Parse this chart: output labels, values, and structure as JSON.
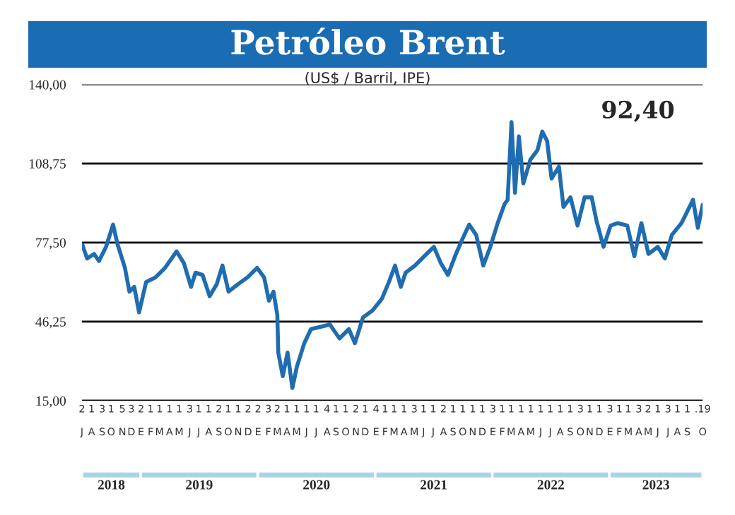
{
  "chart_data": {
    "type": "line",
    "title": "Petróleo Brent",
    "subtitle": "(US$ / Barril, IPE)",
    "annotations": [
      "92,40",
      "J",
      "A",
      "S",
      "O",
      "N",
      "D",
      "E",
      "F",
      "M",
      "A",
      "M",
      "J",
      "J",
      "A",
      "S",
      "O",
      "N",
      "D",
      "E",
      "F",
      "M",
      "A",
      "M",
      "J",
      "J",
      "A",
      "S",
      "O",
      "N",
      "D",
      "E",
      "F",
      "M",
      "A",
      "M",
      "J",
      "J",
      "A",
      "S",
      "O",
      "N",
      "D",
      "E",
      "F",
      "M",
      "A",
      "M",
      "J",
      "J",
      "A",
      "S",
      "O",
      "N",
      "D",
      "E",
      "F",
      "M",
      "A",
      "M",
      "J",
      "J",
      "A",
      "S",
      "O",
      "2018",
      "2019",
      "2020",
      "2021",
      "2022",
      "2023"
    ],
    "x": [
      "2018-07-03",
      "2018-07-18",
      "2018-08-09",
      "2018-08-24",
      "2018-09-15",
      "2018-10-07",
      "2018-10-21",
      "2018-11-13",
      "2018-11-27",
      "2018-12-12",
      "2018-12-27",
      "2019-01-18",
      "2019-02-16",
      "2019-03-18",
      "2019-04-23",
      "2019-05-16",
      "2019-06-07",
      "2019-06-21",
      "2019-07-13",
      "2019-08-04",
      "2019-08-26",
      "2019-09-13",
      "2019-10-02",
      "2019-10-31",
      "2019-11-30",
      "2019-12-30",
      "2020-01-21",
      "2020-02-05",
      "2020-02-19",
      "2020-03-02",
      "2020-03-05",
      "2020-03-19",
      "2020-04-03",
      "2020-04-18",
      "2020-05-02",
      "2020-05-25",
      "2020-06-15",
      "2020-07-15",
      "2020-08-13",
      "2020-09-12",
      "2020-10-11",
      "2020-10-30",
      "2020-11-24",
      "2020-12-24",
      "2021-01-22",
      "2021-02-13",
      "2021-03-04",
      "2021-03-22",
      "2021-04-06",
      "2021-05-05",
      "2021-06-03",
      "2021-07-03",
      "2021-07-25",
      "2021-08-16",
      "2021-09-07",
      "2021-09-29",
      "2021-10-21",
      "2021-11-12",
      "2021-12-04",
      "2021-12-26",
      "2022-01-18",
      "2022-02-08",
      "2022-02-18",
      "2022-03-02",
      "2022-03-13",
      "2022-03-25",
      "2022-04-08",
      "2022-04-30",
      "2022-05-22",
      "2022-06-06",
      "2022-06-21",
      "2022-07-05",
      "2022-07-28",
      "2022-08-11",
      "2022-09-02",
      "2022-09-24",
      "2022-10-16",
      "2022-11-07",
      "2022-11-22",
      "2022-12-14",
      "2023-01-05",
      "2023-01-27",
      "2023-02-26",
      "2023-03-20",
      "2023-04-11",
      "2023-05-03",
      "2023-06-01",
      "2023-06-23",
      "2023-07-15",
      "2023-08-14",
      "2023-09-19",
      "2023-10-04",
      "2023-10-19"
    ],
    "series": [
      {
        "color": "#1f6db0",
        "values": [
          76.8,
          71.2,
          73,
          70.2,
          75.8,
          84.6,
          76.8,
          67.5,
          58.1,
          60,
          49.9,
          61.9,
          63.7,
          67.5,
          74,
          69.3,
          60,
          65.6,
          64.7,
          56.3,
          61,
          68.4,
          58.1,
          61,
          63.7,
          67.5,
          63.7,
          54.5,
          58.1,
          48.9,
          34,
          24.7,
          34,
          20,
          28.4,
          37.7,
          43.3,
          44.2,
          45.1,
          39.6,
          43.3,
          37.7,
          47.9,
          50.7,
          55.3,
          61.9,
          68.4,
          60,
          65.6,
          68.4,
          72.1,
          75.8,
          69.3,
          64.7,
          72.1,
          78.6,
          84.6,
          80.5,
          68.4,
          75.8,
          85.2,
          92.6,
          94.4,
          125.1,
          97.2,
          119.5,
          100.9,
          110.3,
          114,
          121.4,
          117.7,
          102.8,
          107.5,
          91.6,
          95.4,
          84.2,
          95.4,
          95.4,
          86.1,
          75.8,
          84.2,
          85.2,
          84.2,
          72.1,
          85.2,
          73,
          75.8,
          71.2,
          80.5,
          85.2,
          94.4,
          83.3,
          92.4
        ]
      }
    ],
    "xlim": [
      "2018-07-02",
      "2023-10-19"
    ],
    "xticks": [
      {
        "value": "2018-07-02",
        "label": "2"
      },
      {
        "value": "2018-08-01",
        "label": "1"
      },
      {
        "value": "2018-09-03",
        "label": "3"
      },
      {
        "value": "2018-10-01",
        "label": "1"
      },
      {
        "value": "2018-11-05",
        "label": "5"
      },
      {
        "value": "2018-12-03",
        "label": "3"
      },
      {
        "value": "2019-01-02",
        "label": "2"
      },
      {
        "value": "2019-02-01",
        "label": "1"
      },
      {
        "value": "2019-03-01",
        "label": "1"
      },
      {
        "value": "2019-04-01",
        "label": "1"
      },
      {
        "value": "2019-05-01",
        "label": "1"
      },
      {
        "value": "2019-06-03",
        "label": "3"
      },
      {
        "value": "2019-07-01",
        "label": "1"
      },
      {
        "value": "2019-08-01",
        "label": "1"
      },
      {
        "value": "2019-09-02",
        "label": "2"
      },
      {
        "value": "2019-10-01",
        "label": "1"
      },
      {
        "value": "2019-11-01",
        "label": "1"
      },
      {
        "value": "2019-12-02",
        "label": "2"
      },
      {
        "value": "2020-01-02",
        "label": "2"
      },
      {
        "value": "2020-02-03",
        "label": "3"
      },
      {
        "value": "2020-03-02",
        "label": "2"
      },
      {
        "value": "2020-04-01",
        "label": "1"
      },
      {
        "value": "2020-05-01",
        "label": "1"
      },
      {
        "value": "2020-06-01",
        "label": "1"
      },
      {
        "value": "2020-07-01",
        "label": "1"
      },
      {
        "value": "2020-08-04",
        "label": "4"
      },
      {
        "value": "2020-09-01",
        "label": "1"
      },
      {
        "value": "2020-10-01",
        "label": "1"
      },
      {
        "value": "2020-11-02",
        "label": "2"
      },
      {
        "value": "2020-12-01",
        "label": "1"
      },
      {
        "value": "2021-01-04",
        "label": "4"
      },
      {
        "value": "2021-02-01",
        "label": "1"
      },
      {
        "value": "2021-03-01",
        "label": "1"
      },
      {
        "value": "2021-04-01",
        "label": "1"
      },
      {
        "value": "2021-05-03",
        "label": "3"
      },
      {
        "value": "2021-06-01",
        "label": "1"
      },
      {
        "value": "2021-07-01",
        "label": "1"
      },
      {
        "value": "2021-08-02",
        "label": "2"
      },
      {
        "value": "2021-09-01",
        "label": "1"
      },
      {
        "value": "2021-10-01",
        "label": "1"
      },
      {
        "value": "2021-11-01",
        "label": "1"
      },
      {
        "value": "2021-12-01",
        "label": "1"
      },
      {
        "value": "2022-01-03",
        "label": "3"
      },
      {
        "value": "2022-02-01",
        "label": "1"
      },
      {
        "value": "2022-03-01",
        "label": "1"
      },
      {
        "value": "2022-04-01",
        "label": "1"
      },
      {
        "value": "2022-05-01",
        "label": "1"
      },
      {
        "value": "2022-06-01",
        "label": "1"
      },
      {
        "value": "2022-07-01",
        "label": "1"
      },
      {
        "value": "2022-08-01",
        "label": "1"
      },
      {
        "value": "2022-09-01",
        "label": "1"
      },
      {
        "value": "2022-10-03",
        "label": "3"
      },
      {
        "value": "2022-11-01",
        "label": "1"
      },
      {
        "value": "2022-12-01",
        "label": "1"
      },
      {
        "value": "2023-01-03",
        "label": "3"
      },
      {
        "value": "2023-02-01",
        "label": "1"
      },
      {
        "value": "2023-03-01",
        "label": "1"
      },
      {
        "value": "2023-04-03",
        "label": "3"
      },
      {
        "value": "2023-05-02",
        "label": "2"
      },
      {
        "value": "2023-06-01",
        "label": "1"
      },
      {
        "value": "2023-07-03",
        "label": "3"
      },
      {
        "value": "2023-08-01",
        "label": "1"
      },
      {
        "value": "2023-09-01",
        "label": "1"
      },
      {
        "value": "2023-10-19",
        "label": ".19"
      }
    ],
    "ylim": [
      15,
      140
    ],
    "yticks": [
      {
        "value": 15,
        "label": "15,00"
      },
      {
        "value": 46.25,
        "label": "46,25"
      },
      {
        "value": 77.5,
        "label": "77,50"
      },
      {
        "value": 108.75,
        "label": "108,75"
      },
      {
        "value": 140,
        "label": "140,00"
      }
    ],
    "grid": "y",
    "legend": false,
    "line_style": "solid",
    "marker": "none"
  }
}
